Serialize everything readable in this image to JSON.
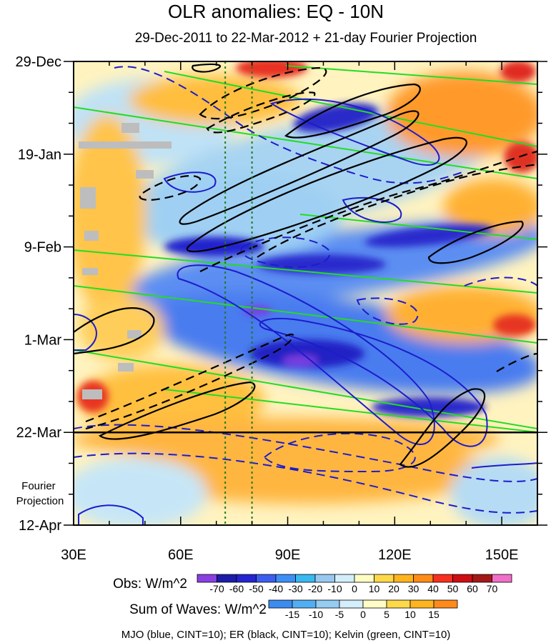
{
  "chart_data": {
    "type": "heatmap",
    "title": "OLR anomalies: EQ - 10N",
    "subtitle": "29-Dec-2011 to 22-Mar-2012 + 21-day Fourier Projection",
    "x_axis": {
      "range": [
        30,
        160
      ],
      "ticks": [
        {
          "value": 30,
          "label": "30E"
        },
        {
          "value": 60,
          "label": "60E"
        },
        {
          "value": 90,
          "label": "90E"
        },
        {
          "value": 120,
          "label": "120E"
        },
        {
          "value": 150,
          "label": "150E"
        }
      ],
      "minor_step": 10
    },
    "y_axis": {
      "range_days": [
        0,
        105
      ],
      "ticks": [
        {
          "value": 0,
          "label": "29-Dec"
        },
        {
          "value": 21,
          "label": "19-Jan"
        },
        {
          "value": 42,
          "label": "9-Feb"
        },
        {
          "value": 63,
          "label": "1-Mar"
        },
        {
          "value": 84,
          "label": "22-Mar"
        },
        {
          "value": 105,
          "label": "12-Apr"
        }
      ],
      "minor_step": 7,
      "projection_start": 84,
      "projection_label": [
        "Fourier",
        "Projection"
      ]
    },
    "reference_lines_lon": [
      72.5,
      80
    ],
    "obs_legend": {
      "label": "Obs: W/m^2",
      "levels": [
        "-70",
        "-60",
        "-50",
        "-40",
        "-30",
        "-20",
        "-10",
        "0",
        "10",
        "20",
        "30",
        "40",
        "50",
        "60",
        "70"
      ],
      "colors": [
        "#8a3fe0",
        "#1c1ca8",
        "#2424d0",
        "#3c5ef0",
        "#3e8ff5",
        "#3ab8f0",
        "#98c8f0",
        "#d2eefb",
        "#fdfdc4",
        "#ffd84a",
        "#ffb41e",
        "#ff8c18",
        "#f83020",
        "#cd0f14",
        "#a51818",
        "#f070c8"
      ]
    },
    "waves_legend": {
      "label": "Sum of Waves: W/m^2",
      "levels": [
        "-15",
        "-10",
        "-5",
        "0",
        "5",
        "10",
        "15"
      ],
      "colors": [
        "#3c8cf0",
        "#52aef2",
        "#94ccf2",
        "#d4eefb",
        "#fdfdc4",
        "#ffd84a",
        "#ffb41e",
        "#ff8a1a"
      ]
    },
    "contours": [
      {
        "name": "MJO",
        "color": "#1c1ccc",
        "cint": 10
      },
      {
        "name": "ER",
        "color": "#000000",
        "cint": 10
      },
      {
        "name": "Kelvin",
        "color": "#22dd22",
        "cint": 10
      }
    ],
    "caption": "MJO (blue, CINT=10); ER (black, CINT=10); Kelvin (green, CINT=10)"
  }
}
